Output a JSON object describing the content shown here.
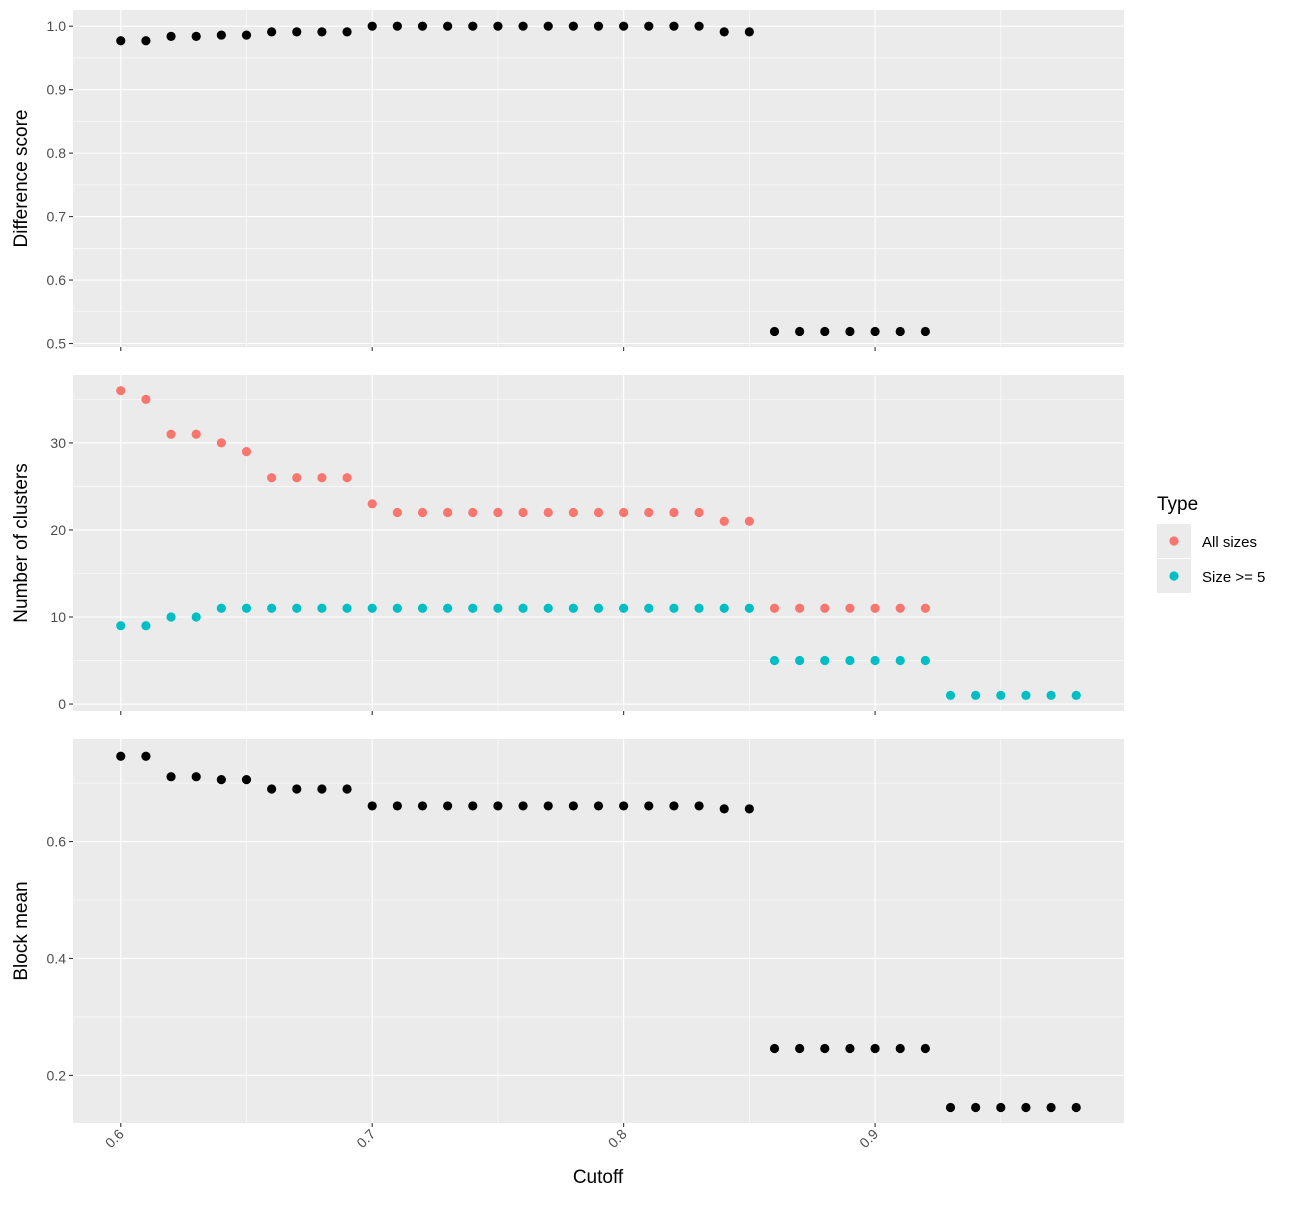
{
  "chart_data": {
    "type": "scatter",
    "x_axis": {
      "title": "Cutoff",
      "range": [
        0.581,
        0.999
      ],
      "ticks": [
        0.6,
        0.7,
        0.8,
        0.9
      ],
      "tick_labels": [
        "0.6",
        "0.7",
        "0.8",
        "0.9"
      ],
      "minor_ticks": [
        0.65,
        0.75,
        0.85,
        0.95
      ]
    },
    "legend": {
      "title": "Type",
      "placement": "right",
      "entries": [
        {
          "label": "All sizes",
          "color": "#F8766D"
        },
        {
          "label": "Size >= 5",
          "color": "#00BFC4"
        }
      ]
    },
    "colors": {
      "panel_background": "#EBEBEB",
      "grid": "#FFFFFF",
      "point_default": "#000000"
    },
    "panels": [
      {
        "name": "difference-score",
        "ylabel": "Difference score",
        "ylim": [
          0.4945,
          1.0255
        ],
        "yticks": [
          0.5,
          0.6,
          0.7,
          0.8,
          0.9,
          1.0
        ],
        "ytick_labels": [
          "0.5",
          "0.6",
          "0.7",
          "0.8",
          "0.9",
          "1.0"
        ],
        "series": [
          {
            "color": "#000000",
            "x": [
              0.6,
              0.61,
              0.62,
              0.63,
              0.64,
              0.65,
              0.66,
              0.67,
              0.68,
              0.69,
              0.7,
              0.71,
              0.72,
              0.73,
              0.74,
              0.75,
              0.76,
              0.77,
              0.78,
              0.79,
              0.8,
              0.81,
              0.82,
              0.83,
              0.84,
              0.85,
              0.86,
              0.87,
              0.88,
              0.89,
              0.9,
              0.91,
              0.92
            ],
            "y": [
              0.977,
              0.977,
              0.984,
              0.984,
              0.986,
              0.986,
              0.991,
              0.991,
              0.991,
              0.991,
              1.0,
              1.0,
              1.0,
              1.0,
              1.0,
              1.0,
              1.0,
              1.0,
              1.0,
              1.0,
              1.0,
              1.0,
              1.0,
              1.0,
              0.991,
              0.991,
              0.519,
              0.519,
              0.519,
              0.519,
              0.519,
              0.519,
              0.519
            ]
          }
        ]
      },
      {
        "name": "number-of-clusters",
        "ylabel": "Number of clusters",
        "ylim": [
          -0.8,
          37.8
        ],
        "yticks": [
          0,
          10,
          20,
          30
        ],
        "ytick_labels": [
          "0",
          "10",
          "20",
          "30"
        ],
        "series": [
          {
            "name": "All sizes",
            "color": "#F8766D",
            "x": [
              0.6,
              0.61,
              0.62,
              0.63,
              0.64,
              0.65,
              0.66,
              0.67,
              0.68,
              0.69,
              0.7,
              0.71,
              0.72,
              0.73,
              0.74,
              0.75,
              0.76,
              0.77,
              0.78,
              0.79,
              0.8,
              0.81,
              0.82,
              0.83,
              0.84,
              0.85,
              0.86,
              0.87,
              0.88,
              0.89,
              0.9,
              0.91,
              0.92
            ],
            "y": [
              36,
              35,
              31,
              31,
              30,
              29,
              26,
              26,
              26,
              26,
              23,
              22,
              22,
              22,
              22,
              22,
              22,
              22,
              22,
              22,
              22,
              22,
              22,
              22,
              21,
              21,
              11,
              11,
              11,
              11,
              11,
              11,
              11
            ]
          },
          {
            "name": "Size >= 5",
            "color": "#00BFC4",
            "x": [
              0.6,
              0.61,
              0.62,
              0.63,
              0.64,
              0.65,
              0.66,
              0.67,
              0.68,
              0.69,
              0.7,
              0.71,
              0.72,
              0.73,
              0.74,
              0.75,
              0.76,
              0.77,
              0.78,
              0.79,
              0.8,
              0.81,
              0.82,
              0.83,
              0.84,
              0.85,
              0.86,
              0.87,
              0.88,
              0.89,
              0.9,
              0.91,
              0.92,
              0.93,
              0.94,
              0.95,
              0.96,
              0.97,
              0.98
            ],
            "y": [
              9,
              9,
              10,
              10,
              11,
              11,
              11,
              11,
              11,
              11,
              11,
              11,
              11,
              11,
              11,
              11,
              11,
              11,
              11,
              11,
              11,
              11,
              11,
              11,
              11,
              11,
              5,
              5,
              5,
              5,
              5,
              5,
              5,
              1,
              1,
              1,
              1,
              1,
              1
            ]
          }
        ]
      },
      {
        "name": "block-mean",
        "ylabel": "Block mean",
        "ylim": [
          0.1185,
          0.7755
        ],
        "yticks": [
          0.2,
          0.4,
          0.6
        ],
        "ytick_labels": [
          "0.2",
          "0.4",
          "0.6"
        ],
        "series": [
          {
            "color": "#000000",
            "x": [
              0.6,
              0.61,
              0.62,
              0.63,
              0.64,
              0.65,
              0.66,
              0.67,
              0.68,
              0.69,
              0.7,
              0.71,
              0.72,
              0.73,
              0.74,
              0.75,
              0.76,
              0.77,
              0.78,
              0.79,
              0.8,
              0.81,
              0.82,
              0.83,
              0.84,
              0.85,
              0.86,
              0.87,
              0.88,
              0.89,
              0.9,
              0.91,
              0.92,
              0.93,
              0.94,
              0.95,
              0.96,
              0.97,
              0.98
            ],
            "y": [
              0.746,
              0.746,
              0.711,
              0.711,
              0.706,
              0.706,
              0.69,
              0.69,
              0.69,
              0.69,
              0.661,
              0.661,
              0.661,
              0.661,
              0.661,
              0.661,
              0.661,
              0.661,
              0.661,
              0.661,
              0.661,
              0.661,
              0.661,
              0.661,
              0.656,
              0.656,
              0.246,
              0.246,
              0.246,
              0.246,
              0.246,
              0.246,
              0.246,
              0.145,
              0.145,
              0.145,
              0.145,
              0.145,
              0.145
            ]
          }
        ]
      }
    ]
  }
}
